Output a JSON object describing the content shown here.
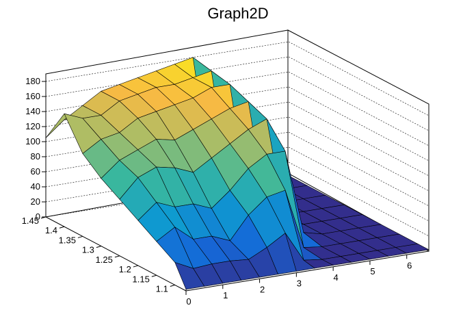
{
  "chart_data": {
    "type": "surface",
    "title": "Graph2D",
    "xlabel": "",
    "ylabel": "",
    "zlabel": "",
    "xlim": [
      0,
      6.6
    ],
    "ylim": [
      1.07,
      1.45
    ],
    "zlim": [
      0,
      190
    ],
    "x_ticks": [
      "0",
      "1",
      "2",
      "3",
      "4",
      "5",
      "6"
    ],
    "y_ticks": [
      "1.1",
      "1.15",
      "1.2",
      "1.25",
      "1.3",
      "1.35",
      "1.4",
      "1.45"
    ],
    "z_ticks": [
      "0",
      "20",
      "40",
      "60",
      "80",
      "100",
      "120",
      "140",
      "160",
      "180"
    ],
    "grid": true,
    "palette": [
      "#352a87",
      "#1568d8",
      "#0f9ccf",
      "#3bb89c",
      "#a3bd6a",
      "#f8ba43",
      "#f9fb0e"
    ],
    "surface_x": [
      0,
      0.5,
      1.0,
      1.5,
      2.0,
      2.5,
      3.0,
      3.5,
      4.0,
      4.5,
      5.0,
      5.5,
      6.0,
      6.6
    ],
    "surface_y": [
      1.07,
      1.1,
      1.15,
      1.2,
      1.25,
      1.3,
      1.35,
      1.4,
      1.45
    ],
    "surface_z": [
      [
        2,
        2,
        2,
        2,
        2,
        2,
        2,
        2,
        2,
        2,
        2,
        2,
        2,
        2
      ],
      [
        30,
        18,
        20,
        20,
        18,
        30,
        45,
        5,
        2,
        2,
        2,
        2,
        2,
        2
      ],
      [
        45,
        60,
        40,
        40,
        30,
        60,
        80,
        85,
        5,
        2,
        2,
        2,
        2,
        2
      ],
      [
        60,
        80,
        70,
        70,
        60,
        80,
        105,
        120,
        120,
        8,
        2,
        2,
        2,
        2
      ],
      [
        75,
        100,
        110,
        105,
        95,
        110,
        125,
        140,
        150,
        10,
        2,
        2,
        2,
        2
      ],
      [
        90,
        110,
        120,
        130,
        125,
        135,
        145,
        155,
        160,
        10,
        2,
        2,
        2,
        2
      ],
      [
        110,
        125,
        130,
        145,
        150,
        155,
        160,
        170,
        170,
        10,
        2,
        2,
        2,
        2
      ],
      [
        150,
        140,
        140,
        155,
        160,
        165,
        165,
        170,
        175,
        12,
        2,
        2,
        2,
        2
      ],
      [
        105,
        125,
        140,
        155,
        160,
        165,
        170,
        175,
        180,
        12,
        2,
        2,
        2,
        2
      ]
    ]
  }
}
